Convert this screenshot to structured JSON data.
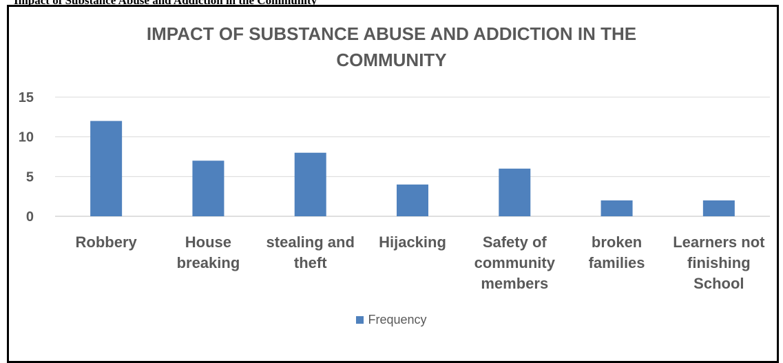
{
  "caption": "Impact of Substance Abuse and Addiction in the Community",
  "chart_data": {
    "type": "bar",
    "title": "IMPACT OF SUBSTANCE ABUSE AND ADDICTION IN THE COMMUNITY",
    "title_lines": [
      "IMPACT OF SUBSTANCE ABUSE AND ADDICTION IN THE",
      "COMMUNITY"
    ],
    "categories": [
      "Robbery",
      "House breaking",
      "stealing and theft",
      "Hijacking",
      "Safety of community members",
      "broken families",
      "Learners not finishing School"
    ],
    "category_lines": [
      [
        "Robbery"
      ],
      [
        "House",
        "breaking"
      ],
      [
        "stealing and",
        "theft"
      ],
      [
        "Hijacking"
      ],
      [
        "Safety of",
        "community",
        "members"
      ],
      [
        "broken",
        "families"
      ],
      [
        "Learners not",
        "finishing",
        "School"
      ]
    ],
    "series": [
      {
        "name": "Frequency",
        "values": [
          12,
          7,
          8,
          4,
          6,
          2,
          2
        ],
        "color": "#4f81bd"
      }
    ],
    "ylim": [
      0,
      15
    ],
    "yticks": [
      0,
      5,
      10,
      15
    ],
    "grid": true,
    "legend_position": "bottom",
    "xlabel": "",
    "ylabel": ""
  }
}
